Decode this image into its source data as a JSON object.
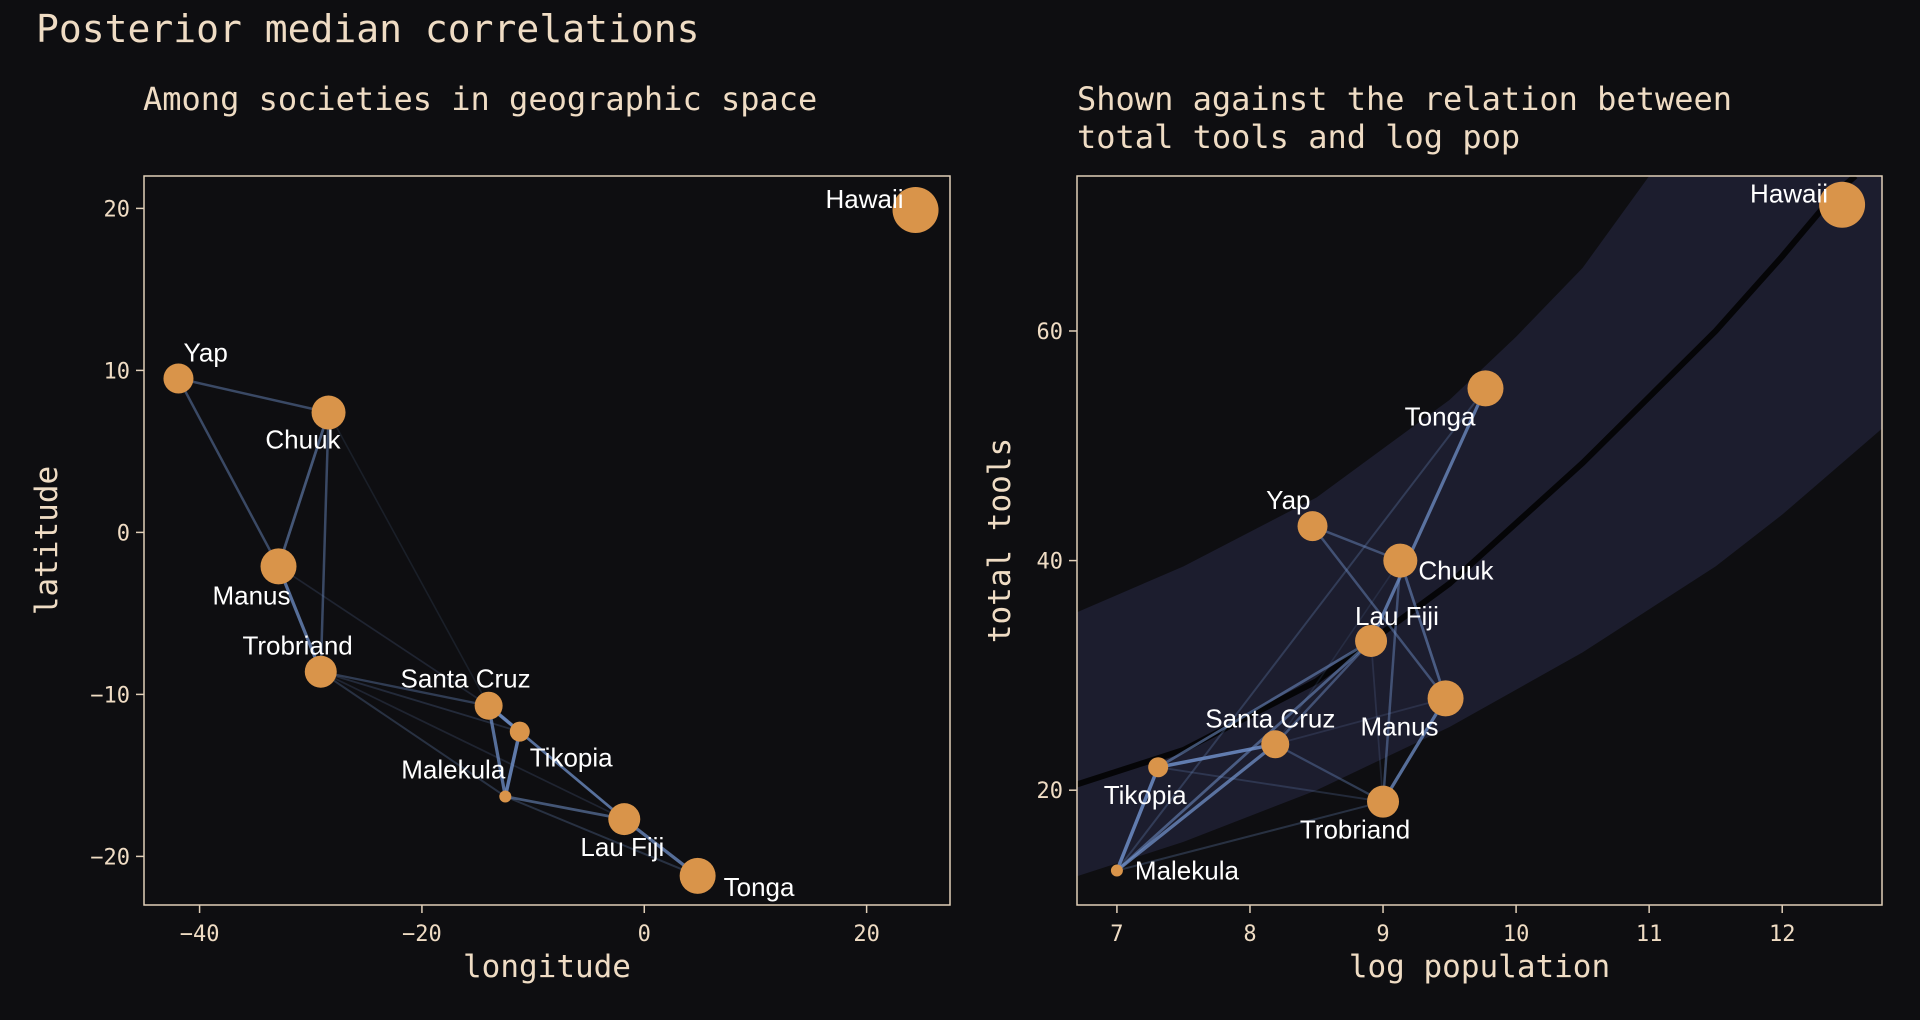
{
  "title": "Posterior median correlations",
  "colors": {
    "background": "#0e0e11",
    "text": "#efdcc4",
    "point": "#d9944a",
    "edge": "#6f8fc8",
    "band": "#1c1d2e",
    "frame": "#e0cfb8"
  },
  "chart_data": [
    {
      "type": "scatter",
      "title": "Among societies in geographic space",
      "xlabel": "longitude",
      "ylabel": "latitude",
      "xlim": [
        -45,
        27.5
      ],
      "ylim": [
        -23,
        22
      ],
      "xticks": [
        -40,
        -20,
        0,
        20
      ],
      "yticks": [
        -20,
        -10,
        0,
        10,
        20
      ],
      "xtick_labels": [
        "−40",
        "−20",
        "0",
        "20"
      ],
      "ytick_labels": [
        "−20",
        "−10",
        "0",
        "10",
        "20"
      ],
      "points": [
        {
          "name": "Malekula",
          "x": -12.5,
          "y": -16.3
        },
        {
          "name": "Tikopia",
          "x": -11.2,
          "y": -12.3
        },
        {
          "name": "Santa Cruz",
          "x": -14.0,
          "y": -10.7
        },
        {
          "name": "Yap",
          "x": -41.9,
          "y": 9.5
        },
        {
          "name": "Lau Fiji",
          "x": -1.8,
          "y": -17.7
        },
        {
          "name": "Trobriand",
          "x": -29.1,
          "y": -8.6
        },
        {
          "name": "Chuuk",
          "x": -28.4,
          "y": 7.4
        },
        {
          "name": "Manus",
          "x": -32.9,
          "y": -2.1
        },
        {
          "name": "Tonga",
          "x": 4.8,
          "y": -21.2
        },
        {
          "name": "Hawaii",
          "x": 24.4,
          "y": 19.9
        }
      ],
      "grid": false,
      "legend": "none"
    },
    {
      "type": "scatter",
      "title": "Shown against the relation between total tools and log pop",
      "xlabel": "log population",
      "ylabel": "total tools",
      "xlim": [
        6.7,
        12.75
      ],
      "ylim": [
        10,
        73.5
      ],
      "xticks": [
        7,
        8,
        9,
        10,
        11,
        12
      ],
      "yticks": [
        20,
        40,
        60
      ],
      "xtick_labels": [
        "7",
        "8",
        "9",
        "10",
        "11",
        "12"
      ],
      "ytick_labels": [
        "20",
        "40",
        "60"
      ],
      "points": [
        {
          "name": "Malekula",
          "x": 7.0,
          "y": 13
        },
        {
          "name": "Tikopia",
          "x": 7.31,
          "y": 22
        },
        {
          "name": "Santa Cruz",
          "x": 8.19,
          "y": 24
        },
        {
          "name": "Yap",
          "x": 8.47,
          "y": 43
        },
        {
          "name": "Lau Fiji",
          "x": 8.91,
          "y": 33
        },
        {
          "name": "Trobriand",
          "x": 9.0,
          "y": 19
        },
        {
          "name": "Chuuk",
          "x": 9.13,
          "y": 40
        },
        {
          "name": "Manus",
          "x": 9.47,
          "y": 28
        },
        {
          "name": "Tonga",
          "x": 9.77,
          "y": 55
        },
        {
          "name": "Hawaii",
          "x": 12.45,
          "y": 71
        }
      ],
      "trend_line": [
        {
          "x": 6.7,
          "y": 20.5
        },
        {
          "x": 7.5,
          "y": 23.5
        },
        {
          "x": 8.5,
          "y": 29.5
        },
        {
          "x": 9.5,
          "y": 38.0
        },
        {
          "x": 10.5,
          "y": 48.5
        },
        {
          "x": 11.5,
          "y": 60.0
        },
        {
          "x": 12.0,
          "y": 66.5
        },
        {
          "x": 12.4,
          "y": 72.0
        },
        {
          "x": 12.55,
          "y": 73.5
        }
      ],
      "interval_upper": [
        {
          "x": 6.7,
          "y": 35.5
        },
        {
          "x": 7.5,
          "y": 39.5
        },
        {
          "x": 8.5,
          "y": 45.5
        },
        {
          "x": 9.5,
          "y": 54.0
        },
        {
          "x": 10.0,
          "y": 59.5
        },
        {
          "x": 10.5,
          "y": 65.5
        },
        {
          "x": 11.0,
          "y": 73.5
        },
        {
          "x": 12.75,
          "y": 73.5
        }
      ],
      "interval_lower": [
        {
          "x": 6.7,
          "y": 12.5
        },
        {
          "x": 7.5,
          "y": 15.5
        },
        {
          "x": 8.5,
          "y": 20.0
        },
        {
          "x": 9.5,
          "y": 25.5
        },
        {
          "x": 10.5,
          "y": 32.0
        },
        {
          "x": 11.5,
          "y": 39.5
        },
        {
          "x": 12.0,
          "y": 44.0
        },
        {
          "x": 12.75,
          "y": 51.5
        }
      ],
      "grid": false,
      "legend": "none"
    }
  ],
  "correlation_edges": [
    {
      "a": "Malekula",
      "b": "Tikopia",
      "rho": 0.8
    },
    {
      "a": "Malekula",
      "b": "Santa Cruz",
      "rho": 0.7
    },
    {
      "a": "Tikopia",
      "b": "Santa Cruz",
      "rho": 0.8
    },
    {
      "a": "Malekula",
      "b": "Lau Fiji",
      "rho": 0.5
    },
    {
      "a": "Tikopia",
      "b": "Lau Fiji",
      "rho": 0.5
    },
    {
      "a": "Santa Cruz",
      "b": "Lau Fiji",
      "rho": 0.4
    },
    {
      "a": "Lau Fiji",
      "b": "Tonga",
      "rho": 0.7
    },
    {
      "a": "Malekula",
      "b": "Tonga",
      "rho": 0.2
    },
    {
      "a": "Trobriand",
      "b": "Manus",
      "rho": 0.7
    },
    {
      "a": "Chuuk",
      "b": "Manus",
      "rho": 0.5
    },
    {
      "a": "Yap",
      "b": "Chuuk",
      "rho": 0.4
    },
    {
      "a": "Yap",
      "b": "Manus",
      "rho": 0.4
    },
    {
      "a": "Chuuk",
      "b": "Trobriand",
      "rho": 0.4
    },
    {
      "a": "Trobriand",
      "b": "Santa Cruz",
      "rho": 0.3
    },
    {
      "a": "Trobriand",
      "b": "Malekula",
      "rho": 0.2
    },
    {
      "a": "Trobriand",
      "b": "Tikopia",
      "rho": 0.15
    },
    {
      "a": "Manus",
      "b": "Santa Cruz",
      "rho": 0.1
    },
    {
      "a": "Chuuk",
      "b": "Santa Cruz",
      "rho": 0.05
    },
    {
      "a": "Trobriand",
      "b": "Lau Fiji",
      "rho": 0.1
    }
  ]
}
